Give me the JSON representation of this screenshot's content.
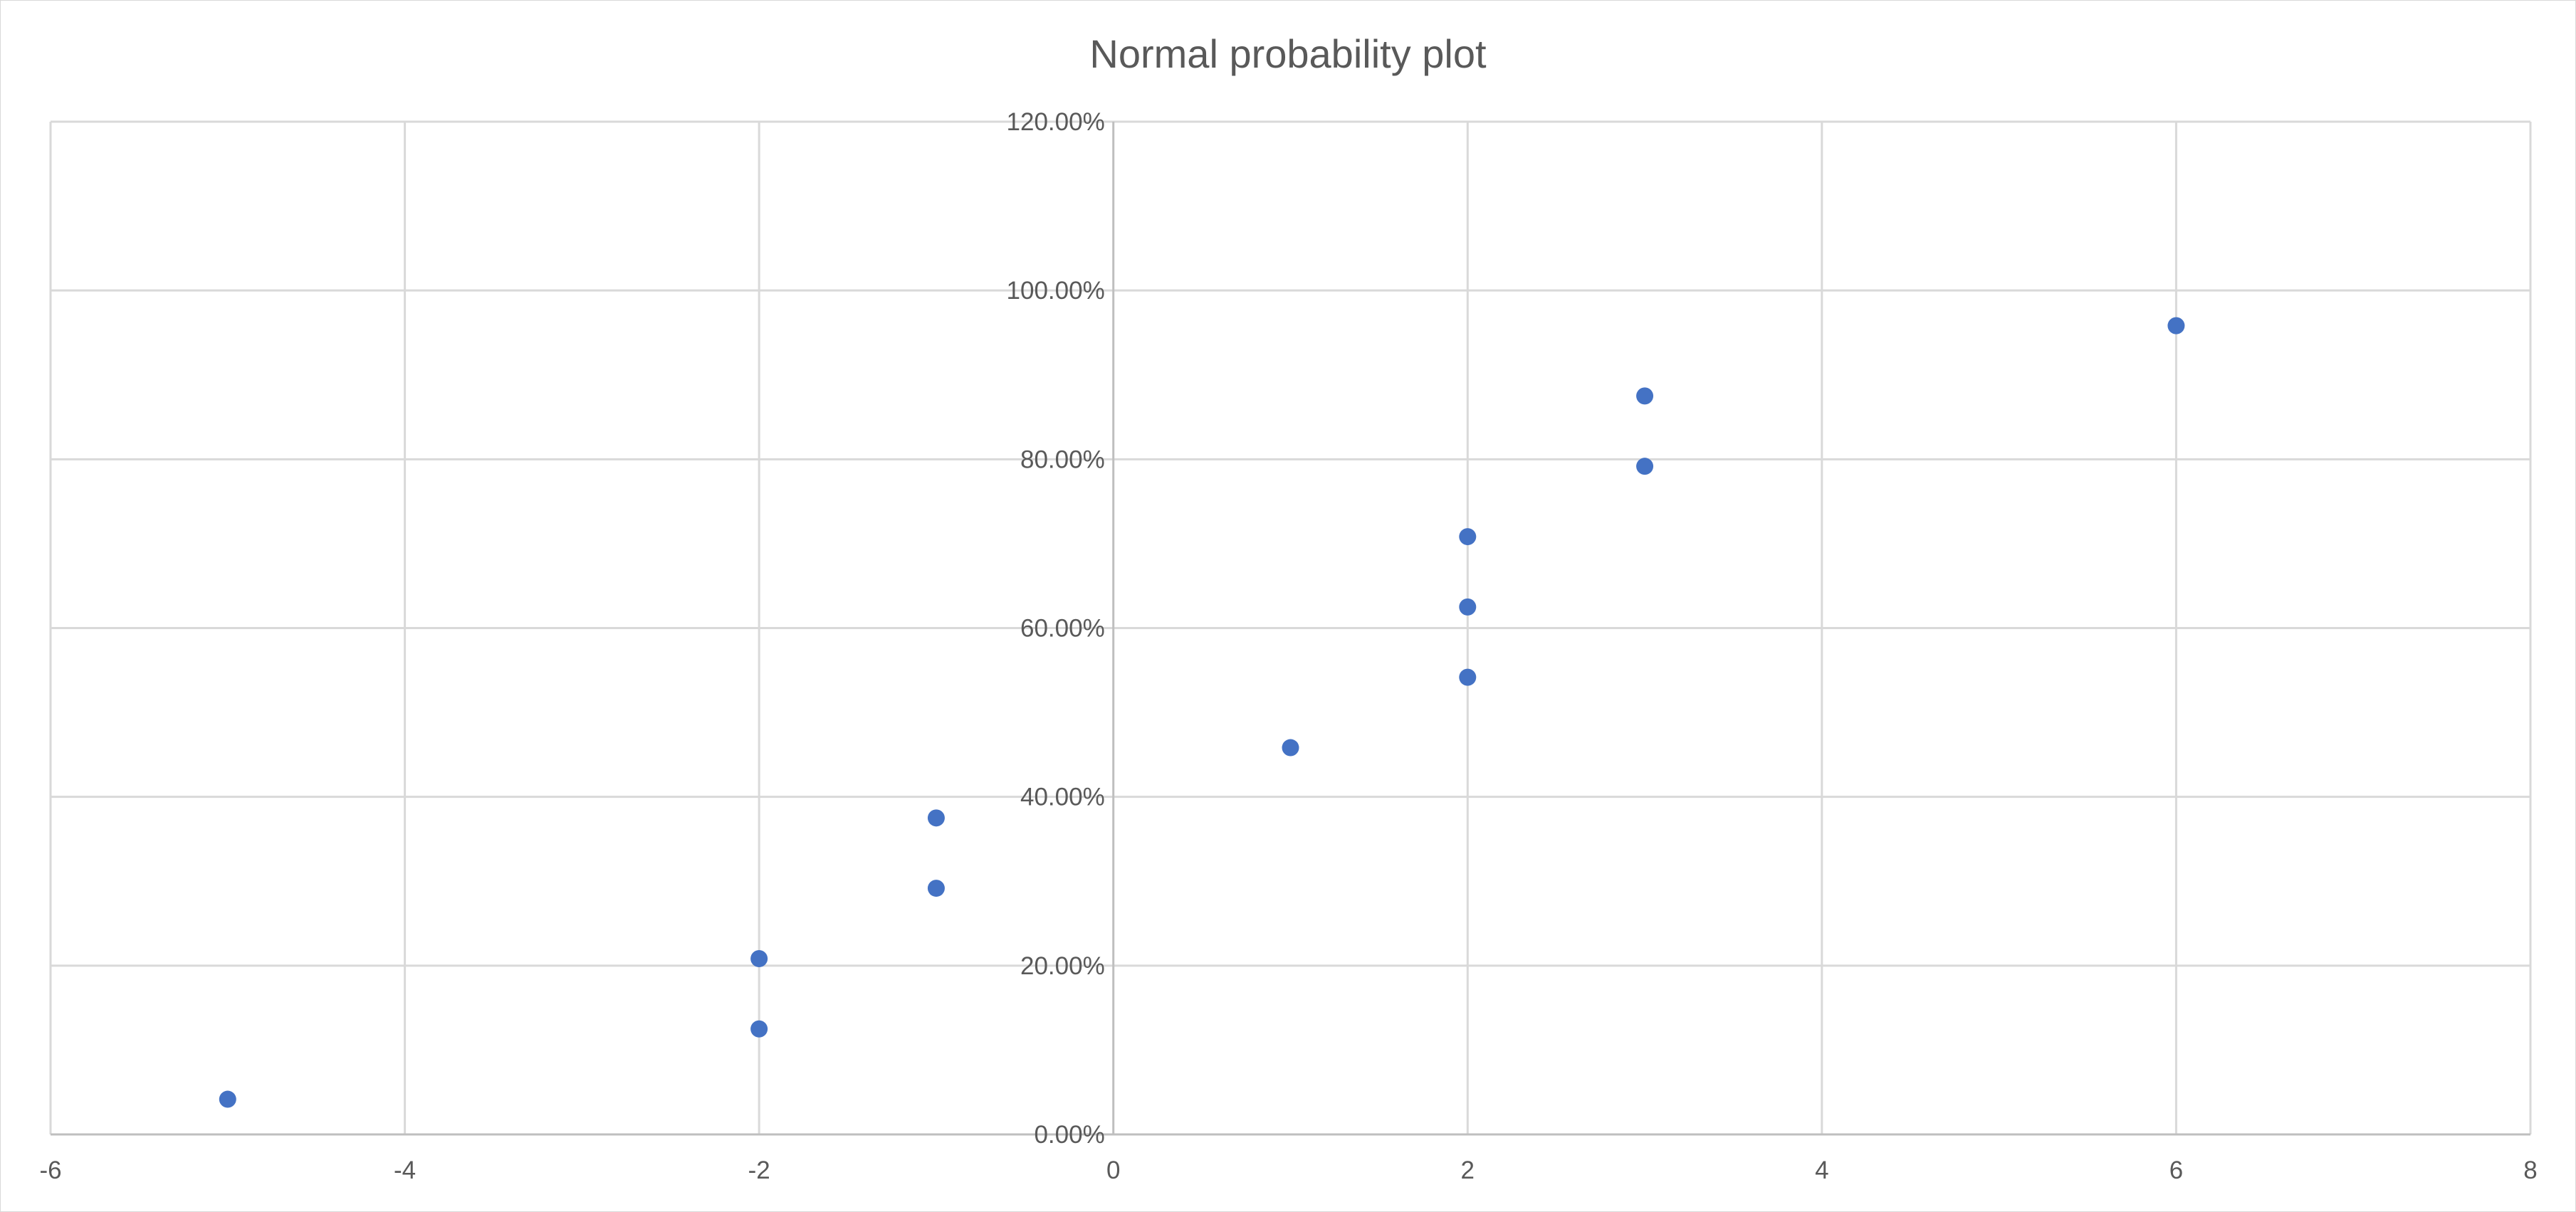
{
  "chart_data": {
    "type": "scatter",
    "title": "Normal probability plot",
    "xlabel": "",
    "ylabel": "",
    "xlim": [
      -6,
      8
    ],
    "ylim": [
      0,
      1.2
    ],
    "x_ticks": [
      -6,
      -4,
      -2,
      0,
      2,
      4,
      6,
      8
    ],
    "x_tick_labels": [
      "-6",
      "-4",
      "-2",
      "0",
      "2",
      "4",
      "6",
      "8"
    ],
    "y_ticks": [
      0,
      0.2,
      0.4,
      0.6,
      0.8,
      1.0,
      1.2
    ],
    "y_tick_labels": [
      "0.00%",
      "20.00%",
      "40.00%",
      "60.00%",
      "80.00%",
      "100.00%",
      "120.00%"
    ],
    "grid": true,
    "legend": "none",
    "marker_color": "#4472c4",
    "series": [
      {
        "points": [
          {
            "x": -5,
            "y": 0.0417
          },
          {
            "x": -2,
            "y": 0.125
          },
          {
            "x": -2,
            "y": 0.2083
          },
          {
            "x": -1,
            "y": 0.2917
          },
          {
            "x": -1,
            "y": 0.375
          },
          {
            "x": 1,
            "y": 0.4583
          },
          {
            "x": 2,
            "y": 0.5417
          },
          {
            "x": 2,
            "y": 0.625
          },
          {
            "x": 2,
            "y": 0.7083
          },
          {
            "x": 3,
            "y": 0.7917
          },
          {
            "x": 3,
            "y": 0.875
          },
          {
            "x": 6,
            "y": 0.9583
          }
        ]
      }
    ]
  }
}
